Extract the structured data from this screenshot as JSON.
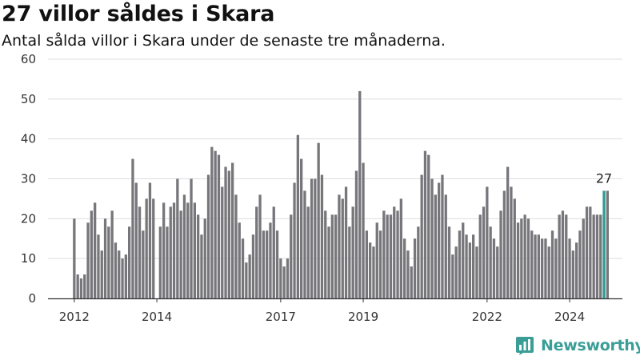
{
  "title": "27 villor såldes i Skara",
  "subtitle": "Antal sålda villor i Skara under de senaste tre månaderna.",
  "brand": {
    "name": "Newsworthy",
    "icon": "bar-chart-logo-icon",
    "color": "#3a9e97"
  },
  "colors": {
    "bar": "#77767b",
    "highlight": "#2a9d91",
    "grid": "#dddddd",
    "axis": "#333333"
  },
  "chart_data": {
    "type": "bar",
    "title": "",
    "xlabel": "",
    "ylabel": "",
    "ylim": [
      0,
      60
    ],
    "yticks": [
      0,
      10,
      20,
      30,
      40,
      50,
      60
    ],
    "x_tick_labels": [
      {
        "label": "2012",
        "index": 0
      },
      {
        "label": "2014",
        "index": 24
      },
      {
        "label": "2017",
        "index": 60
      },
      {
        "label": "2019",
        "index": 84
      },
      {
        "label": "2022",
        "index": 120
      },
      {
        "label": "2024",
        "index": 144
      }
    ],
    "start": "2012-01",
    "frequency": "monthly",
    "grid": true,
    "legend": "none",
    "highlight_index": 154,
    "highlight_label": "27",
    "values": [
      20,
      6,
      5,
      6,
      19,
      22,
      24,
      16,
      12,
      20,
      18,
      22,
      14,
      12,
      10,
      11,
      18,
      35,
      29,
      23,
      17,
      25,
      29,
      25,
      0,
      18,
      24,
      18,
      23,
      24,
      30,
      22,
      26,
      24,
      30,
      24,
      21,
      16,
      20,
      31,
      38,
      37,
      36,
      28,
      33,
      32,
      34,
      26,
      19,
      15,
      9,
      11,
      16,
      23,
      26,
      17,
      17,
      19,
      23,
      17,
      10,
      8,
      10,
      21,
      29,
      41,
      35,
      27,
      23,
      30,
      30,
      39,
      31,
      22,
      18,
      21,
      21,
      26,
      25,
      28,
      18,
      23,
      32,
      52,
      34,
      17,
      14,
      13,
      19,
      17,
      22,
      21,
      21,
      23,
      22,
      25,
      15,
      12,
      8,
      15,
      18,
      31,
      37,
      36,
      30,
      26,
      29,
      31,
      26,
      18,
      11,
      13,
      17,
      19,
      16,
      14,
      16,
      13,
      21,
      23,
      28,
      18,
      15,
      13,
      22,
      27,
      33,
      28,
      25,
      19,
      20,
      21,
      20,
      17,
      16,
      16,
      15,
      15,
      13,
      17,
      15,
      21,
      22,
      21,
      15,
      12,
      14,
      17,
      20,
      23,
      23,
      21,
      21,
      21,
      27,
      27
    ]
  }
}
